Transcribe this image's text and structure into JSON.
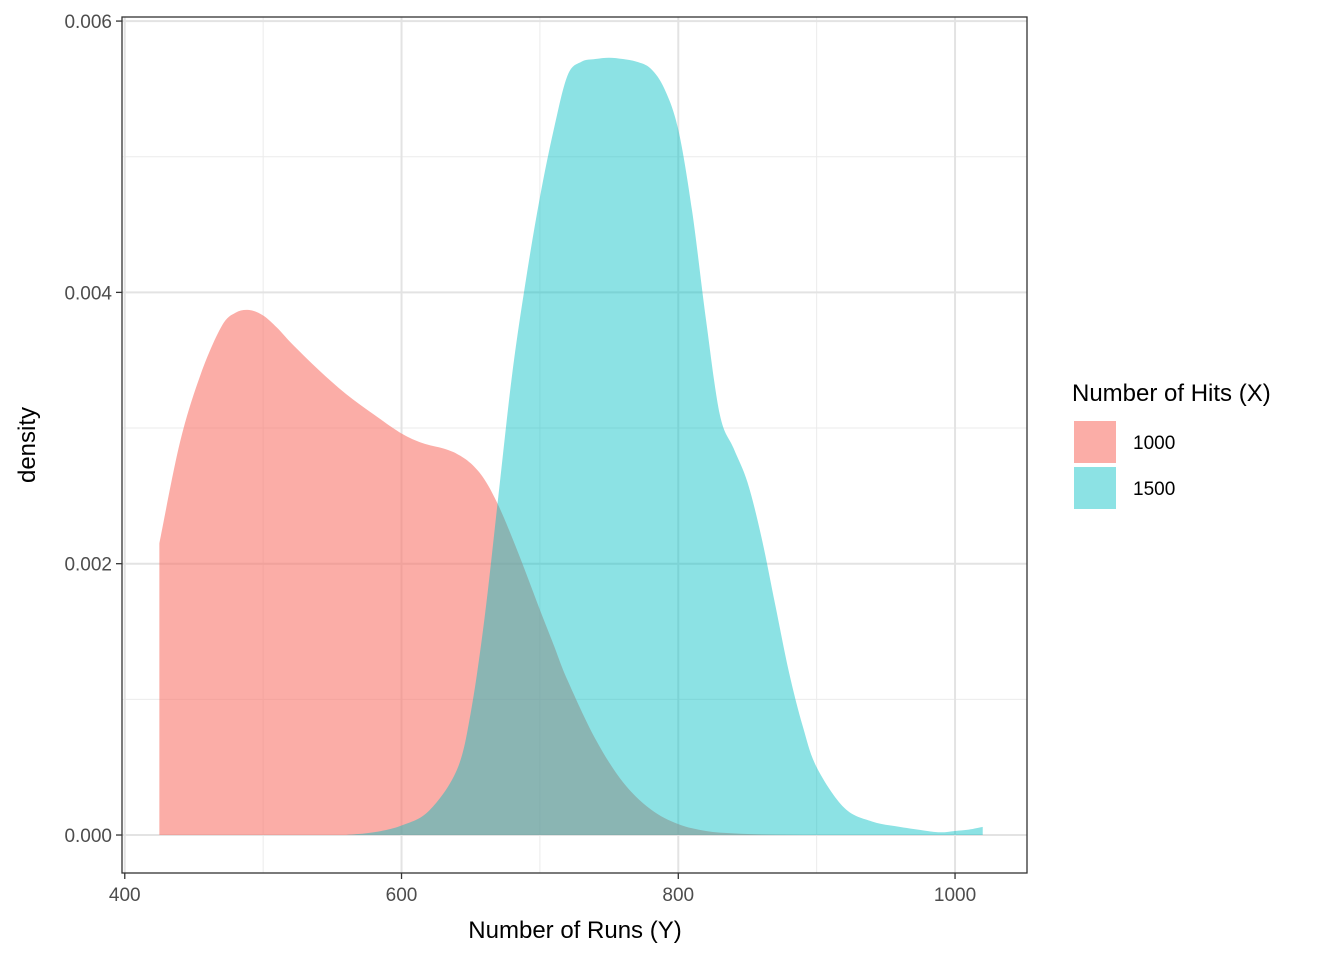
{
  "chart_data": {
    "type": "area",
    "subtype": "density",
    "title": "",
    "xlabel": "Number of Runs (Y)",
    "ylabel": "density",
    "xlim": [
      398,
      1052
    ],
    "ylim": [
      -0.00028,
      0.00603
    ],
    "x_ticks": [
      400,
      600,
      800,
      1000
    ],
    "x_tick_labels": [
      "400",
      "600",
      "800",
      "1000"
    ],
    "y_ticks": [
      0,
      0.002,
      0.004,
      0.006
    ],
    "y_tick_labels": [
      "0.000",
      "0.002",
      "0.004",
      "0.006"
    ],
    "grid": true,
    "legend": {
      "title": "Number of Hits (X)",
      "position": "right"
    },
    "series": [
      {
        "name": "1000",
        "color": "#F8766D",
        "opacity": 0.6,
        "x": [
          425,
          440,
          455,
          470,
          480,
          490,
          500,
          510,
          520,
          540,
          560,
          580,
          600,
          615,
          630,
          640,
          650,
          660,
          670,
          680,
          690,
          700,
          710,
          720,
          740,
          760,
          780,
          800,
          820,
          840,
          860,
          880,
          900,
          920
        ],
        "y": [
          0.00215,
          0.0029,
          0.0034,
          0.00375,
          0.00385,
          0.00387,
          0.00383,
          0.00374,
          0.00363,
          0.00343,
          0.00325,
          0.0031,
          0.00296,
          0.00289,
          0.00285,
          0.00281,
          0.00274,
          0.00262,
          0.00243,
          0.00219,
          0.00193,
          0.00166,
          0.0014,
          0.00114,
          0.00071,
          0.00039,
          0.00019,
          8e-05,
          3e-05,
          1.2e-05,
          4e-06,
          1e-06,
          3e-07,
          0
        ]
      },
      {
        "name": "1500",
        "color": "#00BFC4",
        "opacity": 0.45,
        "x": [
          560,
          580,
          600,
          620,
          640,
          650,
          660,
          670,
          680,
          690,
          700,
          710,
          720,
          730,
          740,
          750,
          760,
          770,
          780,
          790,
          800,
          810,
          820,
          830,
          840,
          850,
          860,
          870,
          880,
          890,
          900,
          920,
          940,
          960,
          980,
          990,
          1000,
          1010,
          1020
        ],
        "y": [
          0,
          2e-05,
          7e-05,
          0.00018,
          0.00048,
          0.0009,
          0.0016,
          0.0025,
          0.0034,
          0.0041,
          0.0047,
          0.0052,
          0.0056,
          0.0057,
          0.00572,
          0.00573,
          0.00572,
          0.0057,
          0.00565,
          0.0055,
          0.0052,
          0.0046,
          0.0038,
          0.0031,
          0.00285,
          0.0026,
          0.0022,
          0.0017,
          0.0012,
          0.0008,
          0.0005,
          0.0002,
          0.0001,
          6e-05,
          3e-05,
          2e-05,
          3e-05,
          4e-05,
          6e-05
        ]
      }
    ]
  }
}
